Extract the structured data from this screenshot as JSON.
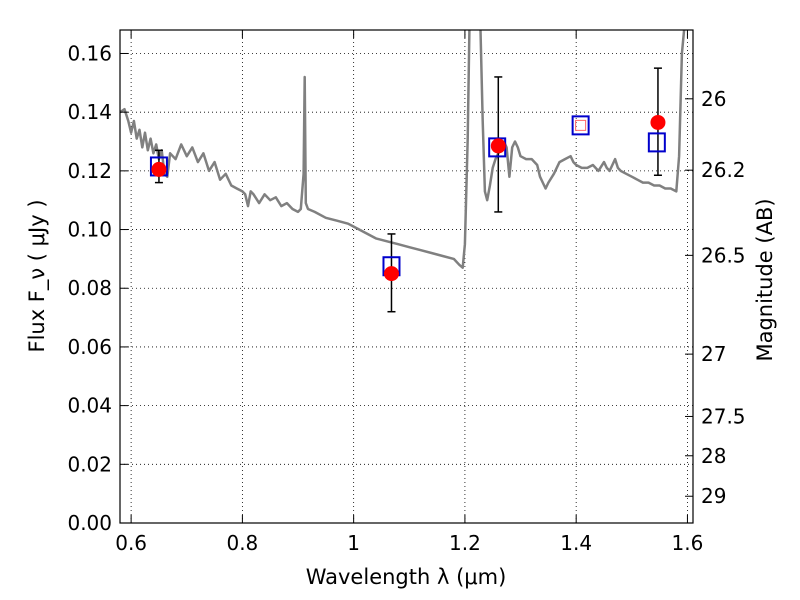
{
  "chart_data": {
    "type": "scatter",
    "title": "",
    "xlabel": "Wavelength  λ (μm)",
    "ylabel": "Flux  F_ν  ( μJy )",
    "y2label": "Magnitude (AB)",
    "xlim": [
      0.58,
      1.61
    ],
    "ylim": [
      0.0,
      0.168
    ],
    "grid": true,
    "x_ticks": [
      {
        "value": 0.6,
        "label": "0.6"
      },
      {
        "value": 0.8,
        "label": "0.8"
      },
      {
        "value": 1.0,
        "label": "1"
      },
      {
        "value": 1.2,
        "label": "1.2"
      },
      {
        "value": 1.4,
        "label": "1.4"
      },
      {
        "value": 1.6,
        "label": "1.6"
      }
    ],
    "y_ticks": [
      {
        "value": 0.0,
        "label": "0.00"
      },
      {
        "value": 0.02,
        "label": "0.02"
      },
      {
        "value": 0.04,
        "label": "0.04"
      },
      {
        "value": 0.06,
        "label": "0.06"
      },
      {
        "value": 0.08,
        "label": "0.08"
      },
      {
        "value": 0.1,
        "label": "0.10"
      },
      {
        "value": 0.12,
        "label": "0.12"
      },
      {
        "value": 0.14,
        "label": "0.14"
      },
      {
        "value": 0.16,
        "label": "0.16"
      }
    ],
    "y2_ticks": [
      {
        "mag": 26,
        "label": "26"
      },
      {
        "mag": 26.2,
        "label": "26.2"
      },
      {
        "mag": 26.5,
        "label": "26.5"
      },
      {
        "mag": 27,
        "label": "27"
      },
      {
        "mag": 27.5,
        "label": "27.5"
      },
      {
        "mag": 28,
        "label": "28"
      },
      {
        "mag": 29,
        "label": "29"
      }
    ],
    "series": [
      {
        "kind": "line",
        "color": "#808080",
        "points": [
          [
            0.58,
            0.14
          ],
          [
            0.588,
            0.141
          ],
          [
            0.595,
            0.137
          ],
          [
            0.6,
            0.133
          ],
          [
            0.605,
            0.137
          ],
          [
            0.61,
            0.131
          ],
          [
            0.615,
            0.134
          ],
          [
            0.62,
            0.128
          ],
          [
            0.625,
            0.133
          ],
          [
            0.63,
            0.127
          ],
          [
            0.635,
            0.131
          ],
          [
            0.64,
            0.126
          ],
          [
            0.645,
            0.129
          ],
          [
            0.65,
            0.124
          ],
          [
            0.655,
            0.127
          ],
          [
            0.66,
            0.119
          ],
          [
            0.665,
            0.118
          ],
          [
            0.67,
            0.126
          ],
          [
            0.68,
            0.124
          ],
          [
            0.69,
            0.129
          ],
          [
            0.7,
            0.125
          ],
          [
            0.71,
            0.128
          ],
          [
            0.72,
            0.123
          ],
          [
            0.73,
            0.126
          ],
          [
            0.74,
            0.12
          ],
          [
            0.75,
            0.123
          ],
          [
            0.76,
            0.117
          ],
          [
            0.77,
            0.119
          ],
          [
            0.78,
            0.115
          ],
          [
            0.79,
            0.114
          ],
          [
            0.8,
            0.113
          ],
          [
            0.805,
            0.112
          ],
          [
            0.81,
            0.108
          ],
          [
            0.815,
            0.113
          ],
          [
            0.82,
            0.112
          ],
          [
            0.83,
            0.109
          ],
          [
            0.84,
            0.112
          ],
          [
            0.85,
            0.11
          ],
          [
            0.86,
            0.111
          ],
          [
            0.87,
            0.108
          ],
          [
            0.88,
            0.109
          ],
          [
            0.89,
            0.107
          ],
          [
            0.9,
            0.106
          ],
          [
            0.905,
            0.107
          ],
          [
            0.91,
            0.119
          ],
          [
            0.912,
            0.152
          ],
          [
            0.914,
            0.109
          ],
          [
            0.918,
            0.107
          ],
          [
            0.93,
            0.106
          ],
          [
            0.95,
            0.104
          ],
          [
            0.97,
            0.103
          ],
          [
            0.99,
            0.102
          ],
          [
            1.0,
            0.101
          ],
          [
            1.02,
            0.099
          ],
          [
            1.04,
            0.097
          ],
          [
            1.06,
            0.096
          ],
          [
            1.08,
            0.095
          ],
          [
            1.1,
            0.094
          ],
          [
            1.12,
            0.093
          ],
          [
            1.14,
            0.092
          ],
          [
            1.16,
            0.091
          ],
          [
            1.18,
            0.09
          ],
          [
            1.19,
            0.088
          ],
          [
            1.196,
            0.087
          ],
          [
            1.2,
            0.095
          ],
          [
            1.205,
            0.131
          ],
          [
            1.208,
            0.168
          ]
        ]
      },
      {
        "kind": "line",
        "color": "#808080",
        "points": [
          [
            1.228,
            0.168
          ],
          [
            1.232,
            0.137
          ],
          [
            1.236,
            0.113
          ],
          [
            1.24,
            0.11
          ],
          [
            1.245,
            0.115
          ],
          [
            1.25,
            0.121
          ],
          [
            1.255,
            0.124
          ],
          [
            1.26,
            0.126
          ],
          [
            1.265,
            0.128
          ],
          [
            1.27,
            0.13
          ],
          [
            1.275,
            0.128
          ],
          [
            1.28,
            0.118
          ],
          [
            1.285,
            0.128
          ],
          [
            1.29,
            0.13
          ],
          [
            1.295,
            0.128
          ],
          [
            1.3,
            0.125
          ],
          [
            1.31,
            0.124
          ],
          [
            1.32,
            0.124
          ],
          [
            1.33,
            0.122
          ],
          [
            1.335,
            0.118
          ],
          [
            1.34,
            0.116
          ],
          [
            1.345,
            0.114
          ],
          [
            1.35,
            0.116
          ],
          [
            1.36,
            0.119
          ],
          [
            1.37,
            0.123
          ],
          [
            1.38,
            0.124
          ],
          [
            1.39,
            0.125
          ],
          [
            1.395,
            0.123
          ],
          [
            1.4,
            0.122
          ],
          [
            1.41,
            0.121
          ],
          [
            1.42,
            0.121
          ],
          [
            1.43,
            0.122
          ],
          [
            1.44,
            0.12
          ],
          [
            1.45,
            0.123
          ],
          [
            1.455,
            0.121
          ],
          [
            1.46,
            0.12
          ],
          [
            1.47,
            0.124
          ],
          [
            1.475,
            0.121
          ],
          [
            1.48,
            0.12
          ],
          [
            1.49,
            0.119
          ],
          [
            1.5,
            0.118
          ],
          [
            1.51,
            0.117
          ],
          [
            1.52,
            0.116
          ],
          [
            1.53,
            0.116
          ],
          [
            1.54,
            0.115
          ],
          [
            1.55,
            0.115
          ],
          [
            1.56,
            0.114
          ],
          [
            1.57,
            0.114
          ],
          [
            1.58,
            0.113
          ],
          [
            1.585,
            0.125
          ],
          [
            1.59,
            0.16
          ],
          [
            1.594,
            0.168
          ]
        ]
      },
      {
        "kind": "model-flux",
        "marker": "open-square",
        "color": "#0000cc",
        "points": [
          {
            "x": 0.65,
            "y": 0.1215
          },
          {
            "x": 1.068,
            "y": 0.0875
          },
          {
            "x": 1.258,
            "y": 0.128
          },
          {
            "x": 1.408,
            "y": 0.1355
          },
          {
            "x": 1.545,
            "y": 0.1297
          }
        ]
      },
      {
        "kind": "observed-flux",
        "marker": "filled-circle",
        "color": "#ff0000",
        "points": [
          {
            "x": 0.65,
            "y": 0.1205,
            "err_lo": 0.0045,
            "err_hi": 0.0065
          },
          {
            "x": 1.068,
            "y": 0.085,
            "err_lo": 0.013,
            "err_hi": 0.0135
          },
          {
            "x": 1.26,
            "y": 0.1285,
            "err_lo": 0.0225,
            "err_hi": 0.0235
          },
          {
            "x": 1.547,
            "y": 0.1365,
            "err_lo": 0.018,
            "err_hi": 0.0185
          }
        ]
      },
      {
        "kind": "upper-limit",
        "marker": "small-open-square",
        "color": "#ff6666",
        "points": [
          {
            "x": 1.408,
            "y": 0.1355
          }
        ]
      }
    ]
  }
}
